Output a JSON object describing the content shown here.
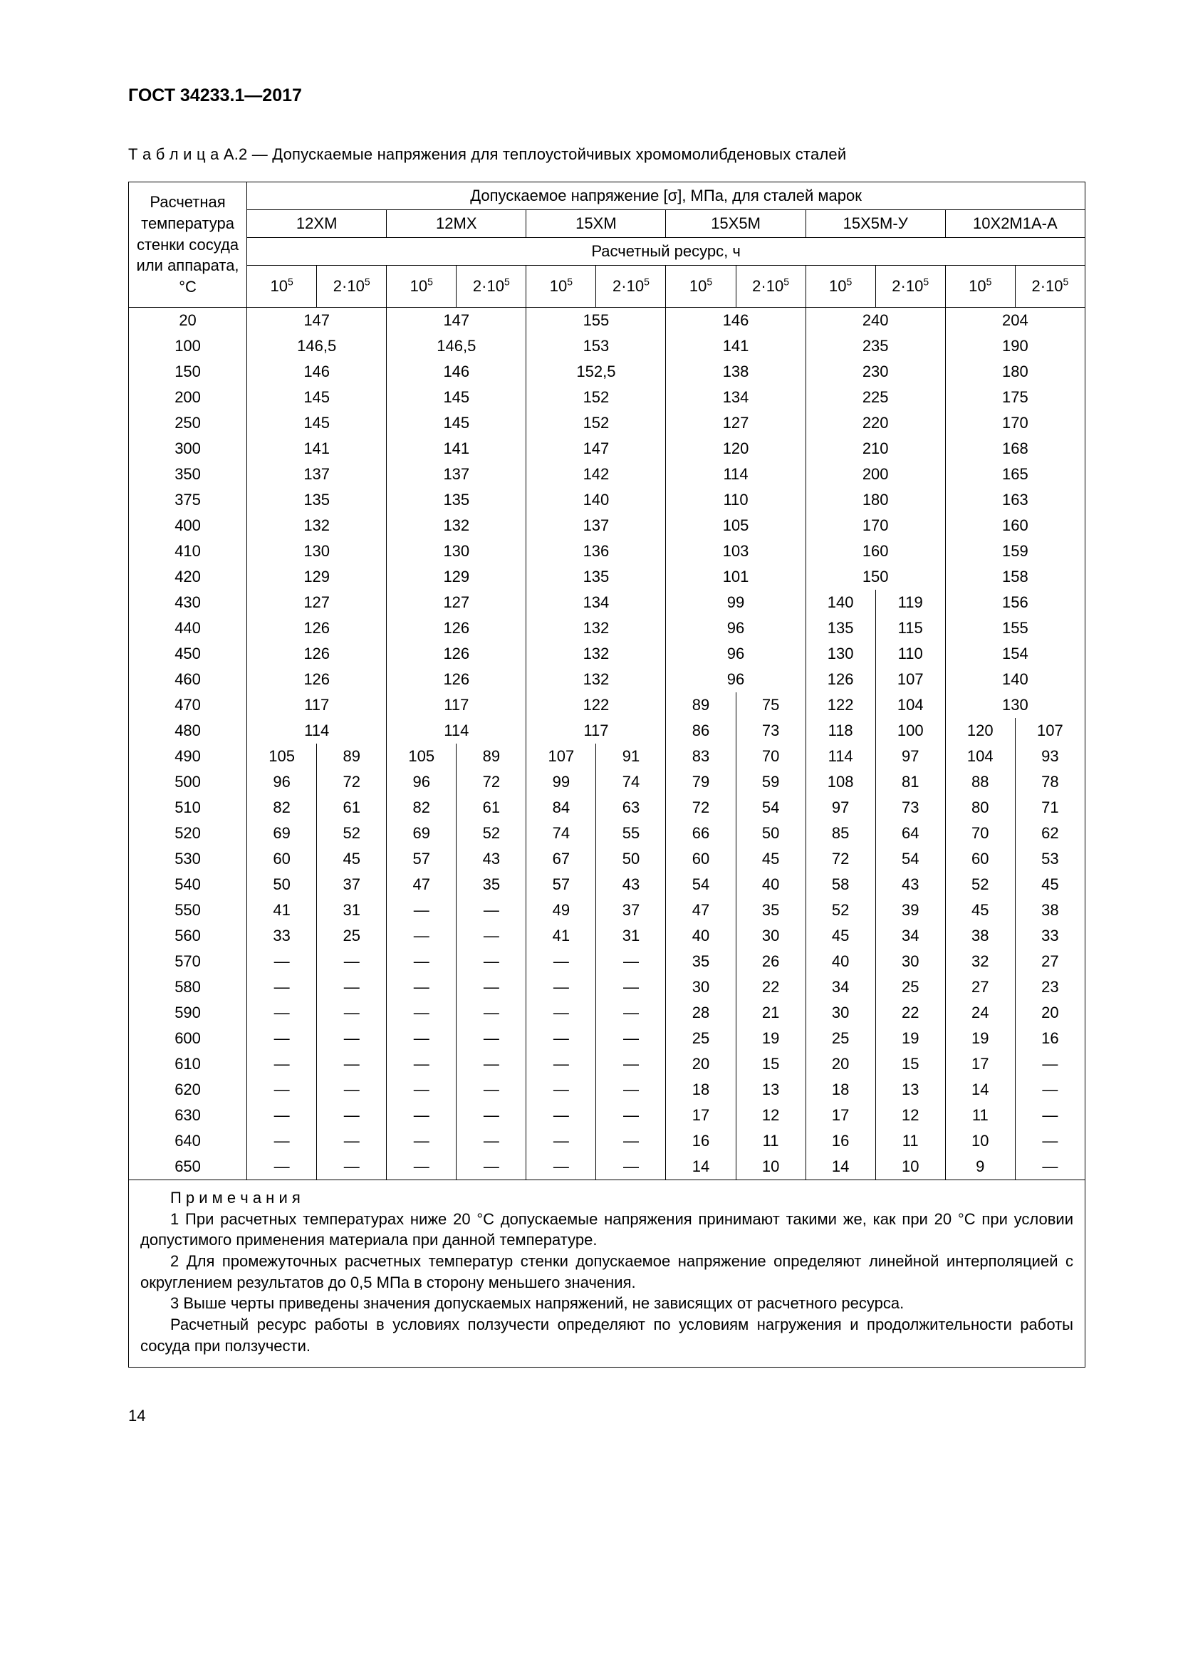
{
  "doc": {
    "header": "ГОСТ 34233.1—2017",
    "caption_prefix": "Т а б л и ц а",
    "caption_rest": "  А.2 — Допускаемые напряжения для теплоустойчивых хромомолибденовых сталей",
    "page_number": "14"
  },
  "table": {
    "rowhead": "Расчетная температура стенки сосуда или аппарата,\n°C",
    "top_header": "Допускаемое напряжение [σ], МПа, для сталей марок",
    "resource_header": "Расчетный ресурс, ч",
    "grades": [
      "12ХМ",
      "12МХ",
      "15ХМ",
      "15Х5М",
      "15Х5М-У",
      "10Х2М1А-А"
    ],
    "tick_a_base": "10",
    "tick_a_sup": "5",
    "tick_b_prefix": "2·10",
    "tick_b_sup": "5",
    "temps": [
      "20",
      "100",
      "150",
      "200",
      "250",
      "300",
      "350",
      "375",
      "400",
      "410",
      "420",
      "430",
      "440",
      "450",
      "460",
      "470",
      "480",
      "490",
      "500",
      "510",
      "520",
      "530",
      "540",
      "550",
      "560",
      "570",
      "580",
      "590",
      "600",
      "610",
      "620",
      "630",
      "640",
      "650"
    ],
    "rows": [
      {
        "span": true,
        "v": [
          "147",
          "147",
          "155",
          "146",
          "240",
          "204"
        ]
      },
      {
        "span": true,
        "v": [
          "146,5",
          "146,5",
          "153",
          "141",
          "235",
          "190"
        ]
      },
      {
        "span": true,
        "v": [
          "146",
          "146",
          "152,5",
          "138",
          "230",
          "180"
        ]
      },
      {
        "span": true,
        "v": [
          "145",
          "145",
          "152",
          "134",
          "225",
          "175"
        ]
      },
      {
        "span": true,
        "v": [
          "145",
          "145",
          "152",
          "127",
          "220",
          "170"
        ]
      },
      {
        "span": true,
        "v": [
          "141",
          "141",
          "147",
          "120",
          "210",
          "168"
        ]
      },
      {
        "span": true,
        "v": [
          "137",
          "137",
          "142",
          "114",
          "200",
          "165"
        ]
      },
      {
        "span": true,
        "v": [
          "135",
          "135",
          "140",
          "110",
          "180",
          "163"
        ]
      },
      {
        "span": true,
        "v": [
          "132",
          "132",
          "137",
          "105",
          "170",
          "160"
        ]
      },
      {
        "span": true,
        "v": [
          "130",
          "130",
          "136",
          "103",
          "160",
          "159"
        ]
      },
      {
        "span": true,
        "v": [
          "129",
          "129",
          "135",
          "101",
          "150",
          "158"
        ]
      },
      {
        "merge": [
          1,
          1,
          1,
          1,
          0,
          1
        ],
        "v": [
          "127",
          "",
          "127",
          "",
          "134",
          "",
          "99",
          "",
          "140",
          "119",
          "156",
          ""
        ]
      },
      {
        "merge": [
          1,
          1,
          1,
          1,
          0,
          1
        ],
        "v": [
          "126",
          "",
          "126",
          "",
          "132",
          "",
          "96",
          "",
          "135",
          "115",
          "155",
          ""
        ]
      },
      {
        "merge": [
          1,
          1,
          1,
          1,
          0,
          1
        ],
        "v": [
          "126",
          "",
          "126",
          "",
          "132",
          "",
          "96",
          "",
          "130",
          "110",
          "154",
          ""
        ]
      },
      {
        "merge": [
          1,
          1,
          1,
          1,
          0,
          1
        ],
        "v": [
          "126",
          "",
          "126",
          "",
          "132",
          "",
          "96",
          "",
          "126",
          "107",
          "140",
          ""
        ]
      },
      {
        "merge": [
          1,
          1,
          1,
          0,
          0,
          1
        ],
        "v": [
          "117",
          "",
          "117",
          "",
          "122",
          "",
          "89",
          "75",
          "122",
          "104",
          "130",
          ""
        ]
      },
      {
        "merge": [
          1,
          1,
          1,
          0,
          0,
          0
        ],
        "v": [
          "114",
          "",
          "114",
          "",
          "117",
          "",
          "86",
          "73",
          "118",
          "100",
          "120",
          "107"
        ]
      },
      {
        "merge": [
          0,
          0,
          0,
          0,
          0,
          0
        ],
        "v": [
          "105",
          "89",
          "105",
          "89",
          "107",
          "91",
          "83",
          "70",
          "114",
          "97",
          "104",
          "93"
        ]
      },
      {
        "merge": [
          0,
          0,
          0,
          0,
          0,
          0
        ],
        "v": [
          "96",
          "72",
          "96",
          "72",
          "99",
          "74",
          "79",
          "59",
          "108",
          "81",
          "88",
          "78"
        ]
      },
      {
        "merge": [
          0,
          0,
          0,
          0,
          0,
          0
        ],
        "v": [
          "82",
          "61",
          "82",
          "61",
          "84",
          "63",
          "72",
          "54",
          "97",
          "73",
          "80",
          "71"
        ]
      },
      {
        "merge": [
          0,
          0,
          0,
          0,
          0,
          0
        ],
        "v": [
          "69",
          "52",
          "69",
          "52",
          "74",
          "55",
          "66",
          "50",
          "85",
          "64",
          "70",
          "62"
        ]
      },
      {
        "merge": [
          0,
          0,
          0,
          0,
          0,
          0
        ],
        "v": [
          "60",
          "45",
          "57",
          "43",
          "67",
          "50",
          "60",
          "45",
          "72",
          "54",
          "60",
          "53"
        ]
      },
      {
        "merge": [
          0,
          0,
          0,
          0,
          0,
          0
        ],
        "v": [
          "50",
          "37",
          "47",
          "35",
          "57",
          "43",
          "54",
          "40",
          "58",
          "43",
          "52",
          "45"
        ]
      },
      {
        "merge": [
          0,
          0,
          0,
          0,
          0,
          0
        ],
        "v": [
          "41",
          "31",
          "—",
          "—",
          "49",
          "37",
          "47",
          "35",
          "52",
          "39",
          "45",
          "38"
        ]
      },
      {
        "merge": [
          0,
          0,
          0,
          0,
          0,
          0
        ],
        "v": [
          "33",
          "25",
          "—",
          "—",
          "41",
          "31",
          "40",
          "30",
          "45",
          "34",
          "38",
          "33"
        ]
      },
      {
        "merge": [
          0,
          0,
          0,
          0,
          0,
          0
        ],
        "v": [
          "—",
          "—",
          "—",
          "—",
          "—",
          "—",
          "35",
          "26",
          "40",
          "30",
          "32",
          "27"
        ]
      },
      {
        "merge": [
          0,
          0,
          0,
          0,
          0,
          0
        ],
        "v": [
          "—",
          "—",
          "—",
          "—",
          "—",
          "—",
          "30",
          "22",
          "34",
          "25",
          "27",
          "23"
        ]
      },
      {
        "merge": [
          0,
          0,
          0,
          0,
          0,
          0
        ],
        "v": [
          "—",
          "—",
          "—",
          "—",
          "—",
          "—",
          "28",
          "21",
          "30",
          "22",
          "24",
          "20"
        ]
      },
      {
        "merge": [
          0,
          0,
          0,
          0,
          0,
          0
        ],
        "v": [
          "—",
          "—",
          "—",
          "—",
          "—",
          "—",
          "25",
          "19",
          "25",
          "19",
          "19",
          "16"
        ]
      },
      {
        "merge": [
          0,
          0,
          0,
          0,
          0,
          0
        ],
        "v": [
          "—",
          "—",
          "—",
          "—",
          "—",
          "—",
          "20",
          "15",
          "20",
          "15",
          "17",
          "—"
        ]
      },
      {
        "merge": [
          0,
          0,
          0,
          0,
          0,
          0
        ],
        "v": [
          "—",
          "—",
          "—",
          "—",
          "—",
          "—",
          "18",
          "13",
          "18",
          "13",
          "14",
          "—"
        ]
      },
      {
        "merge": [
          0,
          0,
          0,
          0,
          0,
          0
        ],
        "v": [
          "—",
          "—",
          "—",
          "—",
          "—",
          "—",
          "17",
          "12",
          "17",
          "12",
          "11",
          "—"
        ]
      },
      {
        "merge": [
          0,
          0,
          0,
          0,
          0,
          0
        ],
        "v": [
          "—",
          "—",
          "—",
          "—",
          "—",
          "—",
          "16",
          "11",
          "16",
          "11",
          "10",
          "—"
        ]
      },
      {
        "merge": [
          0,
          0,
          0,
          0,
          0,
          0
        ],
        "v": [
          "—",
          "—",
          "—",
          "—",
          "—",
          "—",
          "14",
          "10",
          "14",
          "10",
          "9",
          "—"
        ]
      }
    ]
  },
  "notes": {
    "heading": "П р и м е ч а н и я",
    "items": [
      "1 При расчетных температурах ниже 20 °C допускаемые напряжения принимают такими же, как при 20 °C при условии допустимого применения материала при данной температуре.",
      "2 Для промежуточных расчетных температур стенки допускаемое напряжение определяют линейной интерполяцией с округлением результатов до 0,5 МПа в сторону меньшего значения.",
      "3 Выше черты приведены значения допускаемых напряжений, не зависящих от расчетного ресурса.",
      "Расчетный ресурс работы в условиях ползучести определяют по условиям нагружения и продолжительности работы сосуда при ползучести."
    ]
  }
}
